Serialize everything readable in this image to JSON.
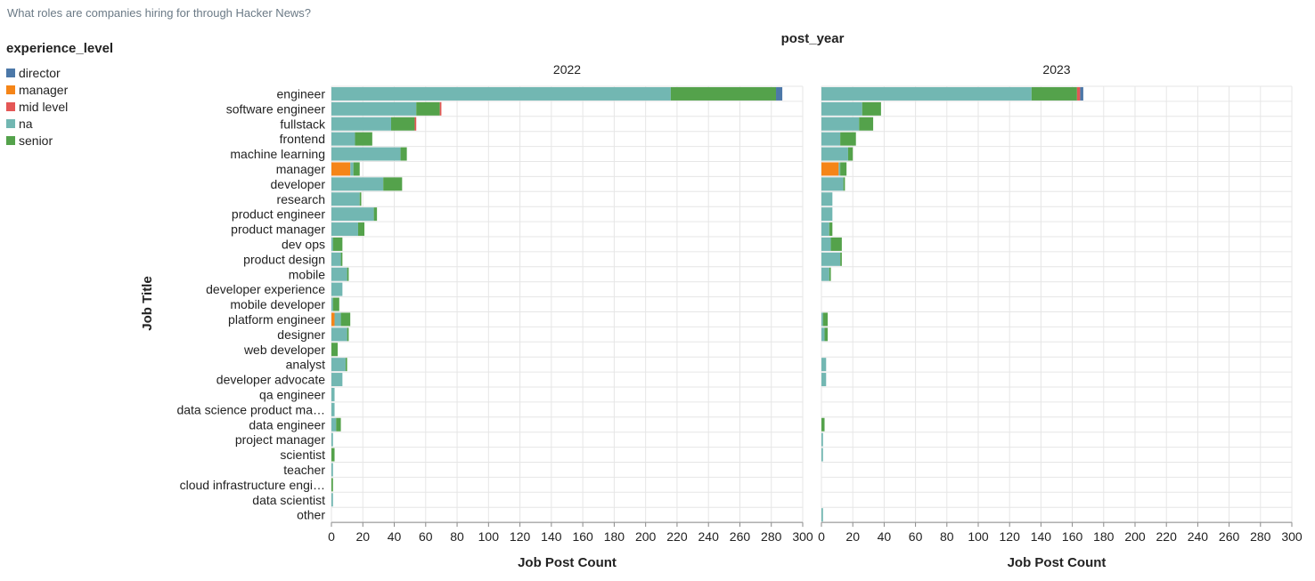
{
  "page": {
    "title": "What roles are companies hiring for through Hacker News?"
  },
  "colors": {
    "director": "#4c78a8",
    "manager": "#f58518",
    "mid level": "#e45756",
    "na": "#72b7b2",
    "senior": "#54a24b",
    "grid": "#e6e6e6",
    "axis": "#888888"
  },
  "chart_data": {
    "type": "bar",
    "orientation": "horizontal",
    "stacked": true,
    "facet_title": "post_year",
    "facets": [
      "2022",
      "2023"
    ],
    "xlabel": "Job Post Count",
    "ylabel": "Job Title",
    "xlim": [
      0,
      300
    ],
    "xticks": [
      0,
      20,
      40,
      60,
      80,
      100,
      120,
      140,
      160,
      180,
      200,
      220,
      240,
      260,
      280,
      300
    ],
    "grid": true,
    "legend": {
      "title": "experience_level",
      "position": "top-left",
      "entries": [
        "director",
        "manager",
        "mid level",
        "na",
        "senior"
      ]
    },
    "stack_order": [
      "manager",
      "na",
      "senior",
      "mid level",
      "director"
    ],
    "categories": [
      "engineer",
      "software engineer",
      "fullstack",
      "frontend",
      "machine learning",
      "manager",
      "developer",
      "research",
      "product engineer",
      "product manager",
      "dev ops",
      "product design",
      "mobile",
      "developer experience",
      "mobile developer",
      "platform engineer",
      "designer",
      "web developer",
      "analyst",
      "developer advocate",
      "qa engineer",
      "data science product ma…",
      "data engineer",
      "project manager",
      "scientist",
      "teacher",
      "cloud infrastructure engi…",
      "data scientist",
      "other"
    ],
    "series": {
      "2022": {
        "manager": [
          0,
          0,
          0,
          0,
          0,
          12,
          0,
          0,
          0,
          0,
          0,
          0,
          0,
          0,
          0,
          2,
          0,
          0,
          0,
          0,
          0,
          0,
          0,
          0,
          0,
          0,
          0,
          0,
          0
        ],
        "na": [
          216,
          54,
          38,
          15,
          44,
          2,
          33,
          18,
          27,
          17,
          1,
          6,
          10,
          7,
          1,
          4,
          10,
          0,
          9,
          7,
          2,
          2,
          3,
          1,
          0,
          1,
          0,
          1,
          0
        ],
        "senior": [
          67,
          15,
          15,
          11,
          4,
          4,
          12,
          1,
          2,
          4,
          6,
          1,
          1,
          0,
          4,
          6,
          1,
          4,
          1,
          0,
          0,
          0,
          3,
          0,
          2,
          0,
          1,
          0,
          0
        ],
        "mid level": [
          0,
          1,
          1,
          0,
          0,
          0,
          0,
          0,
          0,
          0,
          0,
          0,
          0,
          0,
          0,
          0,
          0,
          0,
          0,
          0,
          0,
          0,
          0,
          0,
          0,
          0,
          0,
          0,
          0
        ],
        "director": [
          4,
          0,
          0,
          0,
          0,
          0,
          0,
          0,
          0,
          0,
          0,
          0,
          0,
          0,
          0,
          0,
          0,
          0,
          0,
          0,
          0,
          0,
          0,
          0,
          0,
          0,
          0,
          0,
          0
        ]
      },
      "2023": {
        "manager": [
          0,
          0,
          0,
          0,
          0,
          11,
          0,
          0,
          0,
          0,
          0,
          0,
          0,
          0,
          0,
          0,
          0,
          0,
          0,
          0,
          0,
          0,
          0,
          0,
          0,
          0,
          0,
          0,
          0
        ],
        "na": [
          134,
          26,
          24,
          12,
          17,
          1,
          14,
          7,
          7,
          5,
          6,
          12,
          5,
          0,
          0,
          1,
          2,
          0,
          3,
          3,
          0,
          0,
          0,
          1,
          1,
          0,
          0,
          0,
          1
        ],
        "senior": [
          29,
          12,
          9,
          10,
          3,
          4,
          1,
          0,
          0,
          2,
          7,
          1,
          1,
          0,
          0,
          3,
          2,
          0,
          0,
          0,
          0,
          0,
          2,
          0,
          0,
          0,
          0,
          0,
          0
        ],
        "mid level": [
          2,
          0,
          0,
          0,
          0,
          0,
          0,
          0,
          0,
          0,
          0,
          0,
          0,
          0,
          0,
          0,
          0,
          0,
          0,
          0,
          0,
          0,
          0,
          0,
          0,
          0,
          0,
          0,
          0
        ],
        "director": [
          2,
          0,
          0,
          0,
          0,
          0,
          0,
          0,
          0,
          0,
          0,
          0,
          0,
          0,
          0,
          0,
          0,
          0,
          0,
          0,
          0,
          0,
          0,
          0,
          0,
          0,
          0,
          0,
          0
        ]
      }
    }
  }
}
